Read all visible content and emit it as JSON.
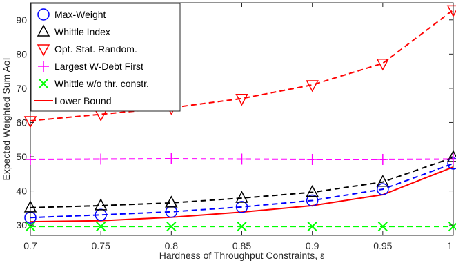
{
  "chart_data": {
    "type": "line",
    "title": "",
    "xlabel": "Hardness of Throughput Constraints, ε",
    "ylabel": "Expected Weighted Sum AoI",
    "x": [
      0.7,
      0.75,
      0.8,
      0.85,
      0.9,
      0.95,
      1
    ],
    "x_tick_labels": [
      "0.7",
      "0.75",
      "0.8",
      "0.85",
      "0.9",
      "0.95",
      "1"
    ],
    "xlim": [
      0.7,
      1.0
    ],
    "ylim": [
      27,
      95
    ],
    "y_ticks": [
      30,
      40,
      50,
      60,
      70,
      80,
      90
    ],
    "grid": false,
    "legend_position": "top-left",
    "series": [
      {
        "name": "Max-Weight",
        "color": "#0000ff",
        "line": "dashed",
        "marker": "circle",
        "values": [
          32.2,
          33.0,
          33.9,
          35.3,
          37.2,
          40.5,
          48.0
        ]
      },
      {
        "name": "Whittle Index",
        "color": "#000000",
        "line": "dashed",
        "marker": "triangle-up",
        "values": [
          35.1,
          35.7,
          36.5,
          37.9,
          39.6,
          42.6,
          49.8
        ]
      },
      {
        "name": "Opt. Stat. Random.",
        "color": "#ff0000",
        "line": "dashed",
        "marker": "triangle-down",
        "values": [
          60.5,
          62.4,
          64.3,
          67.0,
          71.0,
          77.3,
          92.9
        ]
      },
      {
        "name": "Largest W-Debt First",
        "color": "#ff00ff",
        "line": "dashed",
        "marker": "plus",
        "values": [
          49.2,
          49.3,
          49.4,
          49.3,
          49.2,
          49.2,
          49.3
        ]
      },
      {
        "name": "Whittle w/o thr. constr.",
        "color": "#00ff00",
        "line": "dashed",
        "marker": "x",
        "values": [
          29.6,
          29.6,
          29.6,
          29.6,
          29.6,
          29.6,
          29.6
        ]
      },
      {
        "name": "Lower Bound",
        "color": "#ff0000",
        "line": "solid",
        "marker": "none",
        "values": [
          31.0,
          31.3,
          32.3,
          33.8,
          35.7,
          38.9,
          47.0
        ]
      }
    ]
  }
}
